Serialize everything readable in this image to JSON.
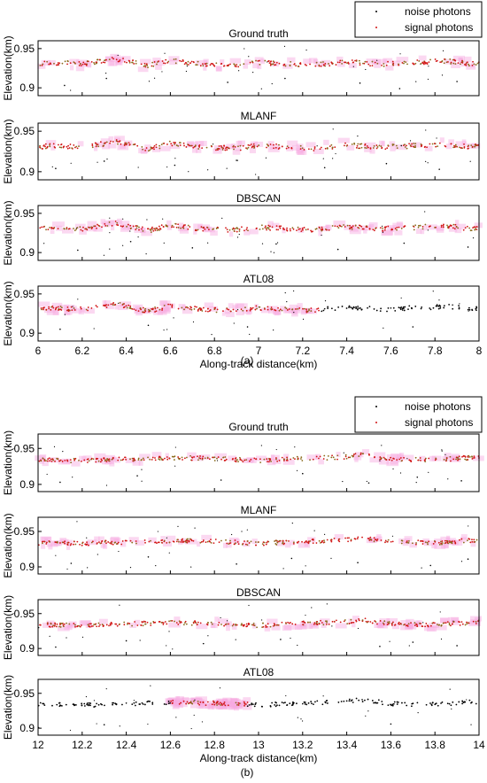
{
  "figure": {
    "captions": [
      "(a)",
      "(b)"
    ],
    "legend": {
      "noise_label": "noise photons",
      "signal_label": "signal photons",
      "placement": "top-right"
    },
    "colors": {
      "noise": "#000000",
      "signal": "#d11414",
      "signal_halo": "#f6a8e0",
      "overlap": "#8a6a1a"
    }
  },
  "chart_data": [
    {
      "type": "scatter",
      "group": "(a)",
      "title": "Ground truth",
      "xlabel": "",
      "ylabel": "Elevation(km)",
      "xlim": [
        6,
        8
      ],
      "ylim": [
        0.89,
        0.96
      ],
      "yticks": [
        0.9,
        0.95
      ],
      "yticklabels": [
        "0.9",
        "0.95"
      ],
      "xticks": [],
      "signal_range": [
        6,
        8
      ],
      "series": [
        {
          "name": "noise photons",
          "color": "#000000",
          "sample_points": [
            [
              6.12,
              0.903
            ],
            [
              6.31,
              0.912
            ],
            [
              6.86,
              0.907
            ],
            [
              7.12,
              0.912
            ],
            [
              7.46,
              0.906
            ],
            [
              7.64,
              0.899
            ],
            [
              7.9,
              0.908
            ]
          ]
        },
        {
          "name": "signal photons",
          "color": "#d11414",
          "profile_points": [
            [
              6.0,
              0.931
            ],
            [
              6.1,
              0.932
            ],
            [
              6.2,
              0.93
            ],
            [
              6.35,
              0.937
            ],
            [
              6.5,
              0.928
            ],
            [
              6.6,
              0.935
            ],
            [
              6.75,
              0.93
            ],
            [
              6.9,
              0.929
            ],
            [
              7.0,
              0.932
            ],
            [
              7.1,
              0.931
            ],
            [
              7.25,
              0.929
            ],
            [
              7.4,
              0.933
            ],
            [
              7.55,
              0.93
            ],
            [
              7.7,
              0.932
            ],
            [
              7.85,
              0.934
            ],
            [
              7.95,
              0.931
            ]
          ]
        }
      ]
    },
    {
      "type": "scatter",
      "group": "(a)",
      "title": "MLANF",
      "xlabel": "",
      "ylabel": "Elevation(km)",
      "xlim": [
        6,
        8
      ],
      "ylim": [
        0.89,
        0.96
      ],
      "yticks": [
        0.9,
        0.95
      ],
      "yticklabels": [
        "0.9",
        "0.95"
      ],
      "xticks": [],
      "signal_range": [
        6,
        8
      ],
      "series": [
        {
          "name": "noise photons",
          "color": "#000000",
          "sample_points": [
            [
              6.08,
              0.904
            ],
            [
              6.3,
              0.913
            ],
            [
              6.62,
              0.908
            ],
            [
              6.9,
              0.914
            ],
            [
              7.3,
              0.905
            ],
            [
              7.58,
              0.91
            ],
            [
              7.82,
              0.903
            ]
          ]
        },
        {
          "name": "signal photons",
          "color": "#d11414",
          "profile_points": [
            [
              6.0,
              0.931
            ],
            [
              6.1,
              0.932
            ],
            [
              6.2,
              0.93
            ],
            [
              6.35,
              0.937
            ],
            [
              6.5,
              0.928
            ],
            [
              6.6,
              0.935
            ],
            [
              6.75,
              0.93
            ],
            [
              6.9,
              0.929
            ],
            [
              7.0,
              0.932
            ],
            [
              7.1,
              0.931
            ],
            [
              7.25,
              0.929
            ],
            [
              7.4,
              0.933
            ],
            [
              7.55,
              0.93
            ],
            [
              7.7,
              0.932
            ],
            [
              7.85,
              0.934
            ],
            [
              7.95,
              0.931
            ]
          ]
        }
      ]
    },
    {
      "type": "scatter",
      "group": "(a)",
      "title": "DBSCAN",
      "xlabel": "",
      "ylabel": "Elevation(km)",
      "xlim": [
        6,
        8
      ],
      "ylim": [
        0.89,
        0.96
      ],
      "yticks": [
        0.9,
        0.95
      ],
      "yticklabels": [
        "0.9",
        "0.95"
      ],
      "xticks": [],
      "signal_range": [
        6,
        8
      ],
      "series": [
        {
          "name": "noise photons",
          "color": "#000000",
          "sample_points": [
            [
              6.18,
              0.903
            ],
            [
              6.42,
              0.914
            ],
            [
              6.7,
              0.906
            ],
            [
              7.08,
              0.911
            ],
            [
              7.36,
              0.904
            ],
            [
              7.66,
              0.912
            ],
            [
              7.95,
              0.907
            ]
          ]
        },
        {
          "name": "signal photons",
          "color": "#d11414",
          "profile_points": [
            [
              6.0,
              0.931
            ],
            [
              6.1,
              0.932
            ],
            [
              6.2,
              0.93
            ],
            [
              6.35,
              0.937
            ],
            [
              6.5,
              0.928
            ],
            [
              6.6,
              0.935
            ],
            [
              6.75,
              0.93
            ],
            [
              6.9,
              0.929
            ],
            [
              7.0,
              0.932
            ],
            [
              7.1,
              0.931
            ],
            [
              7.25,
              0.929
            ],
            [
              7.4,
              0.933
            ],
            [
              7.55,
              0.93
            ],
            [
              7.7,
              0.932
            ],
            [
              7.85,
              0.934
            ],
            [
              7.95,
              0.931
            ]
          ]
        }
      ]
    },
    {
      "type": "scatter",
      "group": "(a)",
      "title": "ATL08",
      "xlabel": "Along-track distance(km)",
      "ylabel": "Elevation(km)",
      "xlim": [
        6,
        8
      ],
      "ylim": [
        0.89,
        0.96
      ],
      "yticks": [
        0.9,
        0.95
      ],
      "yticklabels": [
        "0.9",
        "0.95"
      ],
      "xticks": [
        6,
        6.2,
        6.4,
        6.6,
        6.8,
        7,
        7.2,
        7.4,
        7.6,
        7.8,
        8
      ],
      "xticklabels": [
        "6",
        "6.2",
        "6.4",
        "6.6",
        "6.8",
        "7",
        "7.2",
        "7.4",
        "7.6",
        "7.8",
        "8"
      ],
      "signal_range": [
        6,
        7.28
      ],
      "series": [
        {
          "name": "noise photons",
          "color": "#000000",
          "sample_points": [
            [
              6.1,
              0.905
            ],
            [
              6.5,
              0.91
            ],
            [
              6.95,
              0.908
            ],
            [
              7.3,
              0.931
            ],
            [
              7.6,
              0.932
            ],
            [
              7.88,
              0.936
            ],
            [
              7.7,
              0.908
            ]
          ]
        },
        {
          "name": "signal photons",
          "color": "#d11414",
          "profile_points": [
            [
              6.0,
              0.931
            ],
            [
              6.1,
              0.932
            ],
            [
              6.2,
              0.93
            ],
            [
              6.35,
              0.937
            ],
            [
              6.5,
              0.928
            ],
            [
              6.6,
              0.935
            ],
            [
              6.75,
              0.93
            ],
            [
              6.9,
              0.929
            ],
            [
              7.0,
              0.932
            ],
            [
              7.1,
              0.931
            ],
            [
              7.25,
              0.929
            ]
          ]
        }
      ]
    },
    {
      "type": "scatter",
      "group": "(b)",
      "title": "Ground truth",
      "xlabel": "",
      "ylabel": "Elevation(km)",
      "xlim": [
        12,
        14
      ],
      "ylim": [
        0.89,
        0.97
      ],
      "yticks": [
        0.9,
        0.95
      ],
      "yticklabels": [
        "0.9",
        "0.95"
      ],
      "xticks": [],
      "signal_range": [
        12,
        14
      ],
      "series": [
        {
          "name": "noise photons",
          "color": "#000000",
          "sample_points": [
            [
              12.1,
              0.903
            ],
            [
              12.45,
              0.912
            ],
            [
              12.83,
              0.906
            ],
            [
              13.2,
              0.915
            ],
            [
              13.5,
              0.902
            ],
            [
              13.72,
              0.91
            ],
            [
              13.92,
              0.905
            ]
          ]
        },
        {
          "name": "signal photons",
          "color": "#d11414",
          "profile_points": [
            [
              12.0,
              0.934
            ],
            [
              12.2,
              0.933
            ],
            [
              12.4,
              0.935
            ],
            [
              12.6,
              0.937
            ],
            [
              12.8,
              0.936
            ],
            [
              13.0,
              0.933
            ],
            [
              13.2,
              0.936
            ],
            [
              13.4,
              0.938
            ],
            [
              13.47,
              0.941
            ],
            [
              13.6,
              0.935
            ],
            [
              13.8,
              0.934
            ],
            [
              14.0,
              0.938
            ]
          ]
        }
      ]
    },
    {
      "type": "scatter",
      "group": "(b)",
      "title": "MLANF",
      "xlabel": "",
      "ylabel": "Elevation(km)",
      "xlim": [
        12,
        14
      ],
      "ylim": [
        0.89,
        0.97
      ],
      "yticks": [
        0.9,
        0.95
      ],
      "yticklabels": [
        "0.9",
        "0.95"
      ],
      "xticks": [],
      "signal_range": [
        12,
        14
      ],
      "series": [
        {
          "name": "noise photons",
          "color": "#000000",
          "sample_points": [
            [
              12.15,
              0.905
            ],
            [
              12.5,
              0.914
            ],
            [
              12.9,
              0.904
            ],
            [
              13.15,
              0.912
            ],
            [
              13.45,
              0.906
            ],
            [
              13.78,
              0.902
            ],
            [
              13.95,
              0.911
            ]
          ]
        },
        {
          "name": "signal photons",
          "color": "#d11414",
          "profile_points": [
            [
              12.0,
              0.934
            ],
            [
              12.2,
              0.933
            ],
            [
              12.4,
              0.935
            ],
            [
              12.6,
              0.937
            ],
            [
              12.8,
              0.936
            ],
            [
              13.0,
              0.933
            ],
            [
              13.2,
              0.936
            ],
            [
              13.4,
              0.938
            ],
            [
              13.47,
              0.941
            ],
            [
              13.6,
              0.935
            ],
            [
              13.8,
              0.934
            ],
            [
              14.0,
              0.938
            ]
          ]
        }
      ]
    },
    {
      "type": "scatter",
      "group": "(b)",
      "title": "DBSCAN",
      "xlabel": "",
      "ylabel": "Elevation(km)",
      "xlim": [
        12,
        14
      ],
      "ylim": [
        0.89,
        0.97
      ],
      "yticks": [
        0.9,
        0.95
      ],
      "yticklabels": [
        "0.9",
        "0.95"
      ],
      "xticks": [],
      "signal_range": [
        12,
        14
      ],
      "series": [
        {
          "name": "noise photons",
          "color": "#000000",
          "sample_points": [
            [
              12.08,
              0.902
            ],
            [
              12.4,
              0.911
            ],
            [
              12.75,
              0.907
            ],
            [
              13.1,
              0.913
            ],
            [
              13.55,
              0.903
            ],
            [
              13.7,
              0.909
            ],
            [
              13.9,
              0.904
            ]
          ]
        },
        {
          "name": "signal photons",
          "color": "#d11414",
          "profile_points": [
            [
              12.0,
              0.934
            ],
            [
              12.2,
              0.933
            ],
            [
              12.4,
              0.935
            ],
            [
              12.6,
              0.937
            ],
            [
              12.8,
              0.936
            ],
            [
              13.0,
              0.933
            ],
            [
              13.2,
              0.936
            ],
            [
              13.4,
              0.938
            ],
            [
              13.47,
              0.941
            ],
            [
              13.6,
              0.935
            ],
            [
              13.8,
              0.934
            ],
            [
              14.0,
              0.938
            ]
          ]
        }
      ]
    },
    {
      "type": "scatter",
      "group": "(b)",
      "title": "ATL08",
      "xlabel": "Along-track distance(km)",
      "ylabel": "Elevation(km)",
      "xlim": [
        12,
        14
      ],
      "ylim": [
        0.89,
        0.97
      ],
      "yticks": [
        0.9,
        0.95
      ],
      "yticklabels": [
        "0.9",
        "0.95"
      ],
      "xticks": [
        12,
        12.2,
        12.4,
        12.6,
        12.8,
        13,
        13.2,
        13.4,
        13.6,
        13.8,
        14
      ],
      "xticklabels": [
        "12",
        "12.2",
        "12.4",
        "12.6",
        "12.8",
        "13",
        "13.2",
        "13.4",
        "13.6",
        "13.8",
        "14"
      ],
      "signal_range": [
        12.6,
        12.95
      ],
      "series": [
        {
          "name": "noise photons",
          "color": "#000000",
          "sample_points": [
            [
              12.1,
              0.933
            ],
            [
              12.4,
              0.936
            ],
            [
              13.2,
              0.935
            ],
            [
              13.47,
              0.941
            ],
            [
              13.8,
              0.934
            ],
            [
              12.3,
              0.905
            ],
            [
              13.6,
              0.906
            ]
          ]
        },
        {
          "name": "signal photons",
          "color": "#d11414",
          "profile_points": [
            [
              12.6,
              0.937
            ],
            [
              12.7,
              0.936
            ],
            [
              12.8,
              0.936
            ],
            [
              12.9,
              0.935
            ]
          ]
        }
      ]
    }
  ]
}
